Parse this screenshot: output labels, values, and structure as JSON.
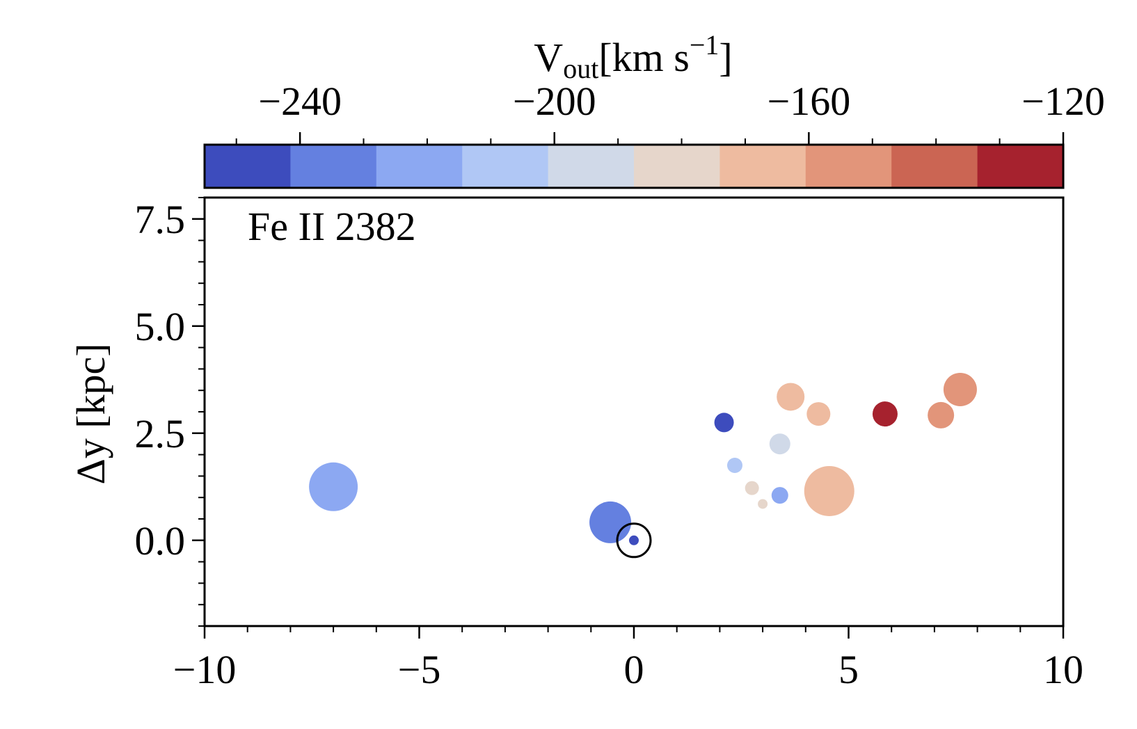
{
  "chart_data": {
    "type": "scatter",
    "annotation": "Fe II 2382",
    "ylabel": "Δy [kpc]",
    "colorbar_label": {
      "base": "V",
      "sub": "out",
      "main": "[km s",
      "sup": "−1",
      "end": "]"
    },
    "x": [
      -7.0,
      -0.55,
      0.0,
      2.1,
      2.35,
      2.75,
      3.0,
      3.4,
      3.4,
      3.65,
      4.3,
      4.55,
      5.85,
      7.15,
      7.6
    ],
    "y": [
      1.25,
      0.42,
      0.0,
      2.75,
      1.75,
      1.22,
      0.85,
      1.05,
      2.25,
      3.35,
      2.95,
      1.15,
      2.95,
      2.92,
      3.52
    ],
    "sizes": [
      1225,
      900,
      49,
      196,
      121,
      100,
      49,
      144,
      225,
      400,
      289,
      1296,
      324,
      361,
      576
    ],
    "colors_value": [
      -220,
      -235,
      -250,
      -248,
      -210,
      -183,
      -183,
      -220,
      -195,
      -170,
      -170,
      -170,
      -125,
      -155,
      -155
    ],
    "reference": {
      "x": 0,
      "y": 0
    },
    "xlim": [
      -10,
      10
    ],
    "xticks": [
      {
        "value": -10,
        "label": "−10"
      },
      {
        "value": -5,
        "label": "−5"
      },
      0,
      5,
      10
    ],
    "ylim": [
      -2,
      8
    ],
    "yticks": [
      {
        "value": 0,
        "label": "0.0"
      },
      {
        "value": 2.5,
        "label": "2.5"
      },
      {
        "value": 5,
        "label": "5.0"
      },
      {
        "value": 7.5,
        "label": "7.5"
      }
    ],
    "clim": [
      -255,
      -120
    ],
    "cticks": [
      {
        "value": -240,
        "label": "−240"
      },
      {
        "value": -200,
        "label": "−200"
      },
      {
        "value": -160,
        "label": "−160"
      },
      {
        "value": -120,
        "label": "−120"
      }
    ],
    "colormap": [
      "#3d4cbd",
      "#6480e0",
      "#8ca8f2",
      "#b0c7f5",
      "#d0d9e8",
      "#e6d6cb",
      "#eebba0",
      "#e2957a",
      "#cb6553",
      "#a6222e"
    ]
  }
}
